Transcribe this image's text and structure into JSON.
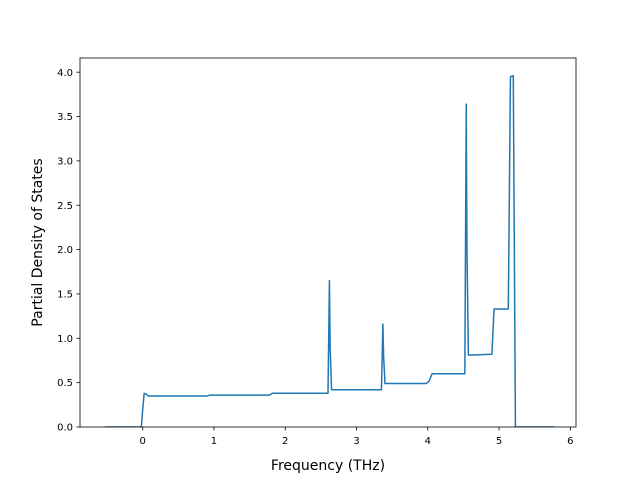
{
  "chart_data": {
    "type": "line",
    "title": "",
    "xlabel": "Frequency (THz)",
    "ylabel": "Partial Density of States",
    "xlim": [
      -0.88,
      6.08
    ],
    "ylim": [
      0.0,
      4.16
    ],
    "xticks": [
      0,
      1,
      2,
      3,
      4,
      5,
      6
    ],
    "yticks": [
      0.0,
      0.5,
      1.0,
      1.5,
      2.0,
      2.5,
      3.0,
      3.5,
      4.0
    ],
    "xtick_labels": [
      "0",
      "1",
      "2",
      "3",
      "4",
      "5",
      "6"
    ],
    "ytick_labels": [
      "0.0",
      "0.5",
      "1.0",
      "1.5",
      "2.0",
      "2.5",
      "3.0",
      "3.5",
      "4.0"
    ],
    "grid": false,
    "legend": "none",
    "series": [
      {
        "color": "#1f77b4",
        "x": [
          -0.53,
          -0.02,
          0.0,
          0.02,
          0.05,
          0.08,
          0.9,
          0.95,
          1.78,
          1.82,
          2.6,
          2.62,
          2.63,
          2.65,
          3.35,
          3.37,
          3.38,
          3.4,
          3.98,
          4.02,
          4.06,
          4.52,
          4.54,
          4.55,
          4.57,
          4.9,
          4.93,
          5.13,
          5.16,
          5.2,
          5.23,
          5.78
        ],
        "y": [
          0.0,
          0.0,
          0.2,
          0.38,
          0.37,
          0.35,
          0.35,
          0.36,
          0.36,
          0.38,
          0.38,
          1.65,
          0.9,
          0.42,
          0.42,
          1.16,
          0.8,
          0.49,
          0.49,
          0.52,
          0.6,
          0.6,
          3.64,
          2.0,
          0.81,
          0.82,
          1.33,
          1.33,
          3.95,
          3.96,
          0.0,
          0.0
        ]
      }
    ]
  }
}
